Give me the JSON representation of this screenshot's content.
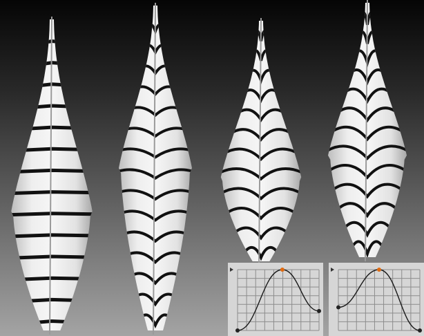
{
  "scene": {
    "background_top": "#060606",
    "background_bottom": "#9a9a9a",
    "feather_fill": "#e9e9e9",
    "stripe_color": "#111111",
    "shaft_color": "#9a9a9a"
  },
  "feathers": [
    {
      "name": "feather-1",
      "stripe_style": "straight",
      "stripe_count": 14
    },
    {
      "name": "feather-2",
      "stripe_style": "chevron",
      "stripe_count": 15
    },
    {
      "name": "feather-3",
      "stripe_style": "wavy",
      "stripe_count": 12
    },
    {
      "name": "feather-4",
      "stripe_style": "wavy-dense",
      "stripe_count": 13
    }
  ],
  "curve_editors": [
    {
      "name": "curve-editor-1",
      "grid_color": "#8c8c8c",
      "panel_color": "#d6d6d6",
      "curve_points": [
        [
          0,
          0
        ],
        [
          0.55,
          1
        ],
        [
          1,
          0.32
        ]
      ],
      "selected_point_color": "#e06a10",
      "point_color": "#222222"
    },
    {
      "name": "curve-editor-2",
      "grid_color": "#8c8c8c",
      "panel_color": "#d6d6d6",
      "curve_points": [
        [
          0,
          0.38
        ],
        [
          0.5,
          1
        ],
        [
          1,
          0
        ]
      ],
      "selected_point_color": "#e06a10",
      "point_color": "#222222"
    }
  ]
}
